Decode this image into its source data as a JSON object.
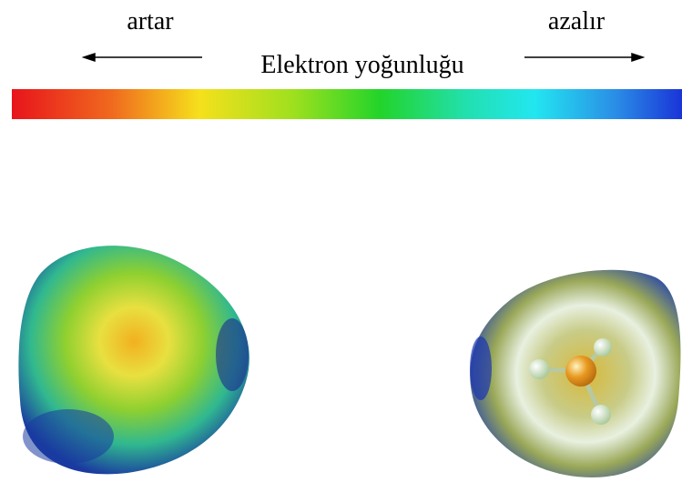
{
  "legend": {
    "left_label": "artar",
    "right_label": "azalır",
    "title": "Elektron yoğunluğu"
  }
}
